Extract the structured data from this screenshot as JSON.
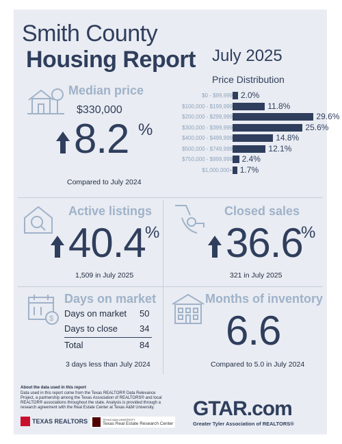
{
  "header": {
    "county": "Smith County",
    "report": "Housing Report",
    "month": "July 2025",
    "price_dist_title": "Price Distribution"
  },
  "median": {
    "heading": "Median price",
    "price": "$330,000",
    "change": "8.2",
    "pct_sign": "%",
    "note": "Compared to July 2024"
  },
  "price_distribution": {
    "type": "bar",
    "categories": [
      "$0 - $99,999",
      "$100,000 - $199,999",
      "$200,000 - $299,999",
      "$300,000 - $399,999",
      "$400,000 - $499,999",
      "$500,000 - $749,999",
      "$750,000 - $999,999",
      "$1,000,000+"
    ],
    "values": [
      2.0,
      11.8,
      29.6,
      25.6,
      14.8,
      12.1,
      2.4,
      1.7
    ],
    "value_labels": [
      "2.0%",
      "11.8%",
      "29.6%",
      "25.6%",
      "14.8%",
      "12.1%",
      "2.4%",
      "1.7%"
    ]
  },
  "active": {
    "heading": "Active listings",
    "change": "40.4",
    "pct_sign": "%",
    "note": "1,509 in July 2025"
  },
  "closed": {
    "heading": "Closed sales",
    "change": "36.6",
    "pct_sign": "%",
    "note": "321 in July 2025"
  },
  "dom": {
    "heading": "Days on market",
    "rows": [
      {
        "label": "Days on market",
        "value": "50"
      },
      {
        "label": "Days to close",
        "value": "34"
      }
    ],
    "total_label": "Total",
    "total_value": "84",
    "note": "3 days less than July 2024"
  },
  "inventory": {
    "heading": "Months of inventory",
    "value": "6.6",
    "note": "Compared to 5.0 in July 2024"
  },
  "footer": {
    "about_title": "About the data used in this report",
    "about_text": "Data used in this report come from the Texas REALTOR® Data Relevance Project, a partnership among the Texas Association of REALTORS® and local REALTOR® associations throughout the state. Analysis is provided through a research agreement with the Real Estate Center at Texas A&M University.",
    "tr_logo": "TEXAS REALTORS",
    "tamu_small": "TEXAS A&M UNIVERSITY",
    "tamu_name": "Texas Real Estate Research Center",
    "gtar_logo": "GTAR.com",
    "gtar_tag": "Greater Tyler Association of REALTORS®"
  },
  "colors": {
    "navy": "#2f3e5c",
    "light_blue": "#9fb2c9",
    "card_bg": "#e9ecf2",
    "red": "#c8102e"
  }
}
